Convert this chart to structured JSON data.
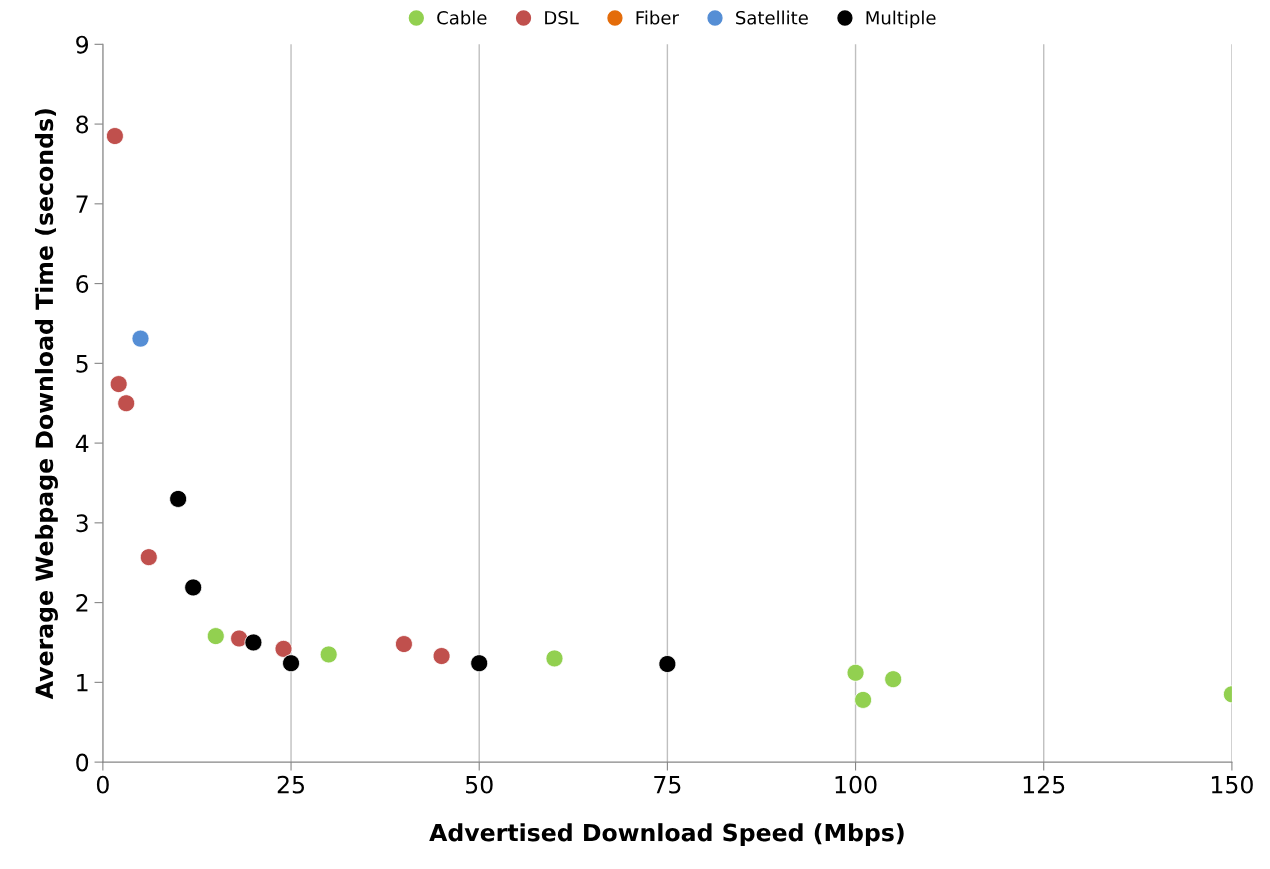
{
  "chart_data": {
    "type": "scatter",
    "xlabel": "Advertised Download Speed (Mbps)",
    "ylabel": "Average Webpage Download Time (seconds)",
    "xlim": [
      0,
      150
    ],
    "xticks": [
      0,
      25,
      50,
      75,
      100,
      125,
      150
    ],
    "ylim": [
      0,
      9
    ],
    "yticks": [
      0,
      1,
      2,
      3,
      4,
      5,
      6,
      7,
      8,
      9
    ],
    "grid": "x",
    "legend": "top",
    "marker": "circle",
    "series": [
      {
        "name": "Cable",
        "color": "#92d050",
        "x": [
          15,
          30,
          60,
          100,
          101,
          105,
          150
        ],
        "values": [
          1.58,
          1.35,
          1.3,
          1.12,
          0.78,
          1.04,
          0.85
        ]
      },
      {
        "name": "DSL",
        "color": "#c0504d",
        "x": [
          1.6,
          2.1,
          3.1,
          6.1,
          18.1,
          24,
          40,
          45
        ],
        "values": [
          7.85,
          4.74,
          4.5,
          2.57,
          1.55,
          1.42,
          1.48,
          1.33
        ]
      },
      {
        "name": "Fiber",
        "color": "#e46c0a"
      },
      {
        "name": "Satellite",
        "color": "#558ed5",
        "x": [
          5
        ],
        "values": [
          5.31
        ]
      },
      {
        "name": "Multiple",
        "color": "#000000",
        "x": [
          10,
          12,
          20,
          25,
          50,
          75
        ],
        "values": [
          3.3,
          2.19,
          1.5,
          1.24,
          1.24,
          1.23
        ]
      }
    ]
  }
}
